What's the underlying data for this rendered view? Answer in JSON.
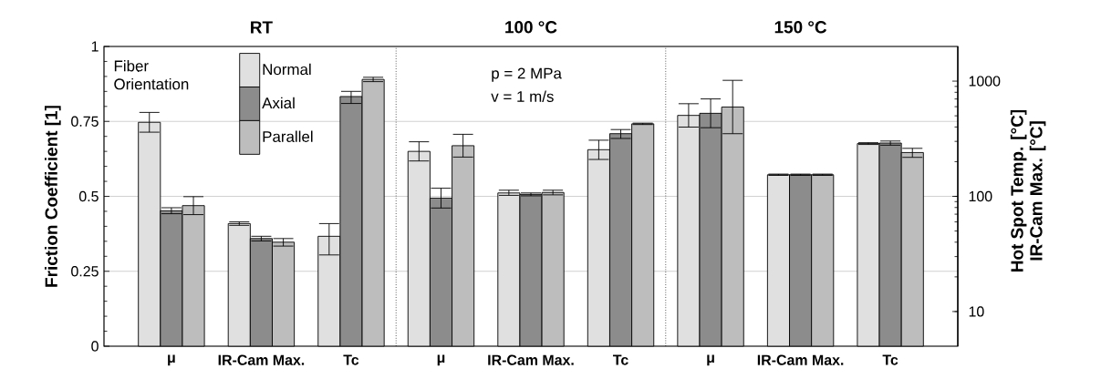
{
  "chart_data": {
    "type": "bar",
    "categories": [
      "μ",
      "IR-Cam Max.",
      "Tc",
      "μ",
      "IR-Cam Max.",
      "Tc",
      "μ",
      "IR-Cam Max.",
      "Tc"
    ],
    "series": [
      {
        "name": "Normal",
        "color": "#e0e0e0",
        "values": [
          0.747,
          null,
          null,
          0.65,
          null,
          null,
          0.77,
          null,
          null
        ],
        "errors": [
          0.033,
          null,
          null,
          0.032,
          null,
          null,
          0.039,
          null,
          null
        ]
      },
      {
        "name": "Axial",
        "color": "#8c8c8c",
        "values": [
          0.452,
          null,
          null,
          0.494,
          null,
          null,
          0.777,
          null,
          null
        ],
        "errors": [
          0.01,
          null,
          null,
          0.033,
          null,
          null,
          0.048,
          null,
          null
        ]
      },
      {
        "name": "Parallel",
        "color": "#bdbdbd",
        "values": [
          0.469,
          null,
          null,
          0.669,
          null,
          null,
          0.798,
          null,
          null
        ],
        "errors": [
          0.03,
          null,
          null,
          0.038,
          null,
          null,
          0.089,
          null,
          null
        ]
      },
      {
        "axis": "y2",
        "color": "#e0e0e0",
        "values": [
          null,
          58,
          45,
          null,
          107,
          254,
          null,
          154,
          287
        ],
        "errors": [
          null,
          [
            56,
            60
          ],
          [
            31,
            58
          ],
          null,
          [
            102,
            113
          ],
          [
            209,
            307
          ],
          null,
          [
            152,
            156
          ],
          [
            282,
            292
          ]
        ]
      },
      {
        "axis": "y2",
        "color": "#8c8c8c",
        "values": [
          null,
          43,
          735,
          null,
          104,
          350,
          null,
          154,
          290
        ],
        "errors": [
          null,
          [
            41,
            45
          ],
          [
            640,
            815
          ],
          null,
          [
            101,
            107
          ],
          [
            318,
            380
          ],
          null,
          [
            152,
            156
          ],
          [
            278,
            302
          ]
        ]
      },
      {
        "axis": "y2",
        "color": "#bdbdbd",
        "values": [
          null,
          40,
          1035,
          null,
          108,
          426,
          null,
          154,
          240
        ],
        "errors": [
          null,
          [
            37,
            43
          ],
          [
            990,
            1080
          ],
          null,
          [
            103,
            113
          ],
          [
            420,
            432
          ],
          null,
          [
            152,
            156
          ],
          [
            218,
            261
          ]
        ]
      }
    ],
    "ylabel": "Friction Coefficient [1]",
    "y2label": [
      "Hot Spot Temp. [°C]",
      "IR-Cam Max. [°C]"
    ],
    "ylim": [
      0,
      1
    ],
    "yticks": [
      0,
      0.25,
      0.5,
      0.75,
      1
    ],
    "y2lim": [
      5,
      2000
    ],
    "y2ticks": [
      10,
      100,
      1000
    ],
    "log": "y2",
    "grid": "y",
    "legend": "top left",
    "legend_title": "Fiber Orientation",
    "annotations": [
      "RT",
      "100 °C",
      "150 °C",
      "p = 2 MPa",
      "v = 1 m/s"
    ]
  }
}
